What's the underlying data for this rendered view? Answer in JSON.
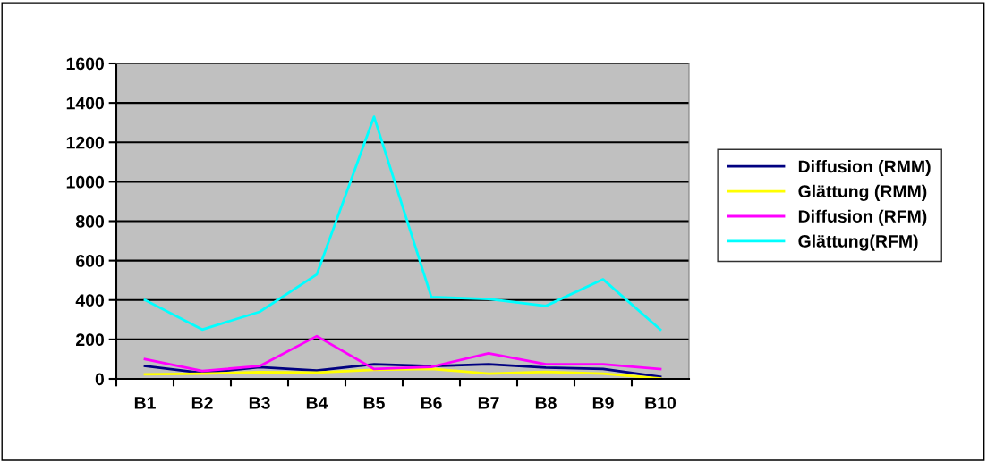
{
  "chart_data": {
    "type": "line",
    "categories": [
      "B1",
      "B2",
      "B3",
      "B4",
      "B5",
      "B6",
      "B7",
      "B8",
      "B9",
      "B10"
    ],
    "series": [
      {
        "name": "Diffusion (RMM)",
        "color": "#000080",
        "values": [
          65,
          30,
          60,
          42,
          74,
          65,
          74,
          57,
          50,
          11
        ]
      },
      {
        "name": "Glättung (RMM)",
        "color": "#ffff00",
        "values": [
          23,
          27,
          34,
          32,
          46,
          51,
          27,
          36,
          27,
          2
        ]
      },
      {
        "name": "Diffusion (RFM)",
        "color": "#ff00ff",
        "values": [
          100,
          40,
          65,
          217,
          50,
          61,
          130,
          74,
          74,
          50
        ]
      },
      {
        "name": "Glättung(RFM)",
        "color": "#00ffff",
        "values": [
          400,
          250,
          340,
          530,
          1330,
          415,
          405,
          370,
          505,
          250
        ]
      }
    ],
    "ylim": [
      0,
      1600
    ],
    "yticks": [
      0,
      200,
      400,
      600,
      800,
      1000,
      1200,
      1400,
      1600
    ],
    "grid": "y",
    "legend": "right",
    "marker": "none",
    "line_style": "solid"
  }
}
